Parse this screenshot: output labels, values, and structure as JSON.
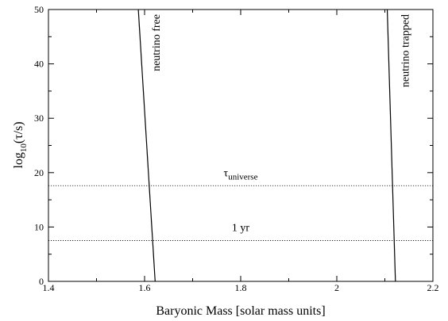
{
  "chart_data": {
    "type": "line",
    "title": "",
    "xlabel": "Baryonic Mass [solar mass units]",
    "ylabel_prefix": "log",
    "ylabel_sub": "10",
    "ylabel_suffix": "(τ/s)",
    "xlim": [
      1.4,
      2.2
    ],
    "ylim": [
      0,
      50
    ],
    "x_ticks": [
      1.4,
      1.6,
      1.8,
      2.0,
      2.2
    ],
    "x_tick_labels": [
      "1.4",
      "1.6",
      "1.8",
      "2",
      "2.2"
    ],
    "y_ticks": [
      0,
      10,
      20,
      30,
      40,
      50
    ],
    "y_tick_labels": [
      "0",
      "10",
      "20",
      "30",
      "40",
      "50"
    ],
    "grid": false,
    "series": [
      {
        "name": "neutrino free",
        "style": "solid",
        "color": "#000000",
        "points": [
          [
            1.587,
            50
          ],
          [
            1.622,
            0
          ]
        ]
      },
      {
        "name": "neutrino trapped",
        "style": "solid",
        "color": "#000000",
        "points": [
          [
            2.105,
            50
          ],
          [
            2.122,
            0
          ]
        ]
      }
    ],
    "reference_lines": [
      {
        "label_main": "τ",
        "label_sub": "universe",
        "y": 17.6,
        "style": "dotted"
      },
      {
        "label_main": "1 yr",
        "label_sub": "",
        "y": 7.5,
        "style": "dotted"
      }
    ]
  }
}
